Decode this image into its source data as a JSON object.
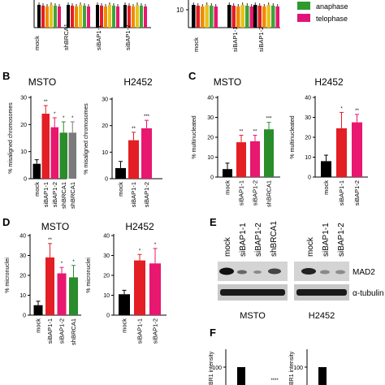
{
  "legend": [
    {
      "label": "anaphase",
      "color": "#2e9a2e"
    },
    {
      "label": "telophase",
      "color": "#e0157a"
    }
  ],
  "colors": {
    "black": "#000000",
    "red": "#e31e24",
    "pink": "#e8176f",
    "green": "#2a8c2a",
    "grey": "#7a7a7a",
    "orange": "#f08a00",
    "yellow": "#e8c21a",
    "strip_green": "#3ba53b"
  },
  "panel_a": {
    "left": {
      "categories": [
        "mock",
        "shBRCA1",
        "siBAP1-1",
        "siBAP1-2"
      ],
      "visible_tick": ""
    },
    "right": {
      "categories": [
        "mock",
        "siBAP1-1",
        "siBAP1-2"
      ],
      "visible_tick": "10"
    }
  },
  "panel_letters": {
    "b": "B",
    "c": "C",
    "d": "D",
    "e": "E",
    "f": "F"
  },
  "chart_data": [
    {
      "id": "b_msto",
      "type": "bar",
      "title": "MSTO",
      "ylabel": "% misaligned chromosomes",
      "ylim": [
        0,
        30
      ],
      "yticks": [
        "0",
        "10",
        "20",
        "30"
      ],
      "categories": [
        "mock",
        "siBAP1-1",
        "siBAP1-2",
        "shBRCA1",
        "shBRCA1"
      ],
      "values": [
        5.5,
        24,
        19,
        17,
        17
      ],
      "errors": [
        1.5,
        3,
        3.5,
        4,
        4
      ],
      "stars": [
        "",
        "**",
        "*",
        "*",
        "*"
      ],
      "colors": [
        "#000000",
        "#e31e24",
        "#e8176f",
        "#2a8c2a",
        "#7a7a7a"
      ]
    },
    {
      "id": "b_h2452",
      "type": "bar",
      "title": "H2452",
      "ylabel": "% misaligned chromosomes",
      "ylim": [
        0,
        30
      ],
      "yticks": [
        "0",
        "10",
        "20",
        "30"
      ],
      "categories": [
        "mock",
        "siBAP1-1",
        "siBAP1-2"
      ],
      "values": [
        4,
        14.5,
        19
      ],
      "errors": [
        2.5,
        3,
        3
      ],
      "stars": [
        "",
        "**",
        "***"
      ],
      "colors": [
        "#000000",
        "#e31e24",
        "#e8176f"
      ]
    },
    {
      "id": "c_msto",
      "type": "bar",
      "title": "MSTO",
      "ylabel": "% multinucleated",
      "ylim": [
        0,
        40
      ],
      "yticks": [
        "0",
        "10",
        "20",
        "30",
        "40"
      ],
      "categories": [
        "mock",
        "siBAP1-1",
        "siBAP1-2",
        "shBRCA1"
      ],
      "values": [
        4,
        17.5,
        18,
        24
      ],
      "errors": [
        3,
        3.5,
        3,
        3.5
      ],
      "stars": [
        "",
        "**",
        "**",
        "***"
      ],
      "colors": [
        "#000000",
        "#e31e24",
        "#e8176f",
        "#2a8c2a"
      ]
    },
    {
      "id": "c_h2452",
      "type": "bar",
      "title": "H2452",
      "ylabel": "% multinucleated",
      "ylim": [
        0,
        40
      ],
      "yticks": [
        "0",
        "10",
        "20",
        "30",
        "40"
      ],
      "categories": [
        "mock",
        "siBAP1-1",
        "siBAP1-2"
      ],
      "values": [
        8,
        24.5,
        27.5
      ],
      "errors": [
        3,
        8,
        4
      ],
      "stars": [
        "",
        "*",
        "**"
      ],
      "colors": [
        "#000000",
        "#e31e24",
        "#e8176f"
      ]
    },
    {
      "id": "d_msto",
      "type": "bar",
      "title": "MSTO",
      "ylabel": "% micronuclei",
      "ylim": [
        0,
        40
      ],
      "yticks": [
        "0",
        "10",
        "20",
        "30",
        "40"
      ],
      "categories": [
        "mock",
        "siBAP1-1",
        "siBAP1-2",
        "shBRCA1"
      ],
      "values": [
        5,
        29,
        21,
        19
      ],
      "errors": [
        2,
        7,
        3,
        6
      ],
      "stars": [
        "",
        "**",
        "*",
        "*"
      ],
      "colors": [
        "#000000",
        "#e31e24",
        "#e8176f",
        "#2a8c2a"
      ]
    },
    {
      "id": "d_h2452",
      "type": "bar",
      "title": "H2452",
      "ylabel": "% micronuclei",
      "ylim": [
        0,
        40
      ],
      "yticks": [
        "0",
        "10",
        "20",
        "30",
        "40"
      ],
      "categories": [
        "mock",
        "siBAP1-1",
        "siBAP1-2"
      ],
      "values": [
        10.5,
        27.5,
        26
      ],
      "errors": [
        2,
        3,
        7.5
      ],
      "stars": [
        "",
        "*",
        "*"
      ],
      "colors": [
        "#000000",
        "#e31e24",
        "#e8176f"
      ]
    }
  ],
  "panel_e": {
    "lanes_msto": [
      "mock",
      "siBAP1-1",
      "siBAP1-2",
      "shBRCA1"
    ],
    "lanes_h2452": [
      "mock",
      "siBAP1-1",
      "siBAP1-2"
    ],
    "band_labels": [
      "MAD2",
      "α-tubulin"
    ],
    "group_labels": [
      "MSTO",
      "H2452"
    ]
  },
  "panel_f": {
    "left": {
      "ylabel": "BR1 intensity",
      "tick": "100",
      "star": "****"
    },
    "right": {
      "ylabel": "BR1 intensity",
      "tick": "100"
    }
  }
}
